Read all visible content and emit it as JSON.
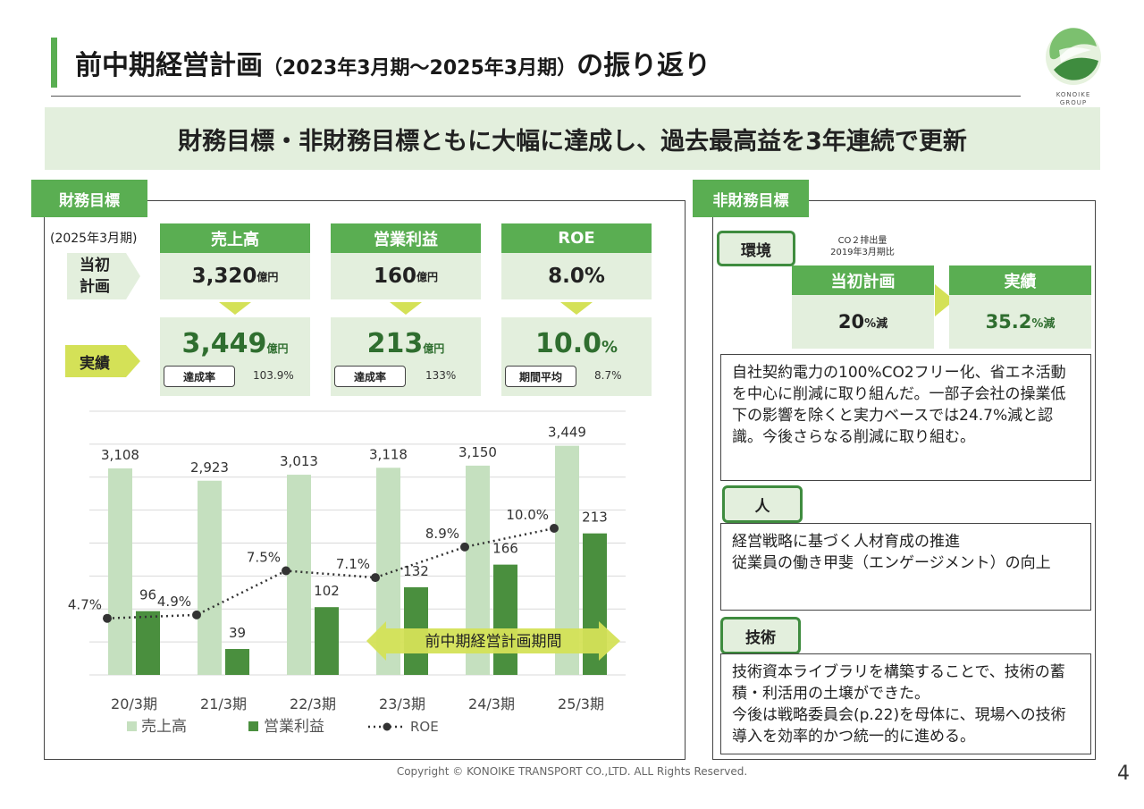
{
  "header": {
    "title_main": "前中期経営計画",
    "title_sub": "（2023年3月期～2025年3月期）",
    "title_end": "の振り返り",
    "logo_text_1": "KONOIKE",
    "logo_text_2": "GROUP"
  },
  "banner": "財務目標・非財務目標ともに大幅に達成し、過去最高益を3年連続で更新",
  "financial": {
    "tab": "財務目標",
    "period": "(2025年3月期)",
    "row_plan": "当初\n計画",
    "row_plan_1": "当初",
    "row_plan_2": "計画",
    "row_actual": "実績",
    "cols": [
      {
        "header": "売上高",
        "plan_value": "3,320",
        "plan_unit": "億円",
        "actual_value": "3,449",
        "actual_unit": "億円",
        "pill": "達成率",
        "pill_value": "103.9%"
      },
      {
        "header": "営業利益",
        "plan_value": "160",
        "plan_unit": "億円",
        "actual_value": "213",
        "actual_unit": "億円",
        "pill": "達成率",
        "pill_value": "133%"
      },
      {
        "header": "ROE",
        "plan_value": "8.0%",
        "plan_unit": "",
        "actual_value": "10.0",
        "actual_unit": "%",
        "pill": "期間平均",
        "pill_value": "8.7%"
      }
    ],
    "arrow_label": "前中期経営計画期間"
  },
  "chart_data": {
    "type": "bar",
    "categories": [
      "20/3期",
      "21/3期",
      "22/3期",
      "23/3期",
      "24/3期",
      "25/3期"
    ],
    "series": [
      {
        "name": "売上高",
        "type": "bar",
        "values": [
          3108,
          2923,
          3013,
          3118,
          3150,
          3449
        ],
        "labels": [
          "3,108",
          "2,923",
          "3,013",
          "3,118",
          "3,150",
          "3,449"
        ],
        "color": "#c5e0bf"
      },
      {
        "name": "営業利益",
        "type": "bar",
        "values": [
          96,
          39,
          102,
          132,
          166,
          213
        ],
        "labels": [
          "96",
          "39",
          "102",
          "132",
          "166",
          "213"
        ],
        "color": "#4a8f3e"
      },
      {
        "name": "ROE",
        "type": "line",
        "values": [
          4.7,
          4.9,
          7.5,
          7.1,
          8.9,
          10.0
        ],
        "labels": [
          "4.7%",
          "4.9%",
          "7.5%",
          "7.1%",
          "8.9%",
          "10.0%"
        ],
        "color": "#333333"
      }
    ],
    "legend_placement": "bottom",
    "grid": true
  },
  "nonfinancial": {
    "tab": "非財務目標",
    "env": {
      "label": "環境",
      "note_1": "CO２排出量",
      "note_2": "2019年3月期比",
      "plan_header": "当初計画",
      "plan_value": "20",
      "plan_unit": "%減",
      "actual_header": "実績",
      "actual_value": "35.2",
      "actual_unit": "%減",
      "text": "自社契約電力の100%CO2フリー化、省エネ活動を中心に削減に取り組んだ。一部子会社の操業低下の影響を除くと実力ベースでは24.7%減と認識。今後さらなる削減に取り組む。"
    },
    "people": {
      "label": "人",
      "text": "経営戦略に基づく人材育成の推進\n従業員の働き甲斐（エンゲージメント）の向上"
    },
    "tech": {
      "label": "技術",
      "text": "技術資本ライブラリを構築することで、技術の蓄積・利活用の土壌ができた。\n今後は戦略委員会(p.22)を母体に、現場への技術導入を効率的かつ統一的に進める。"
    }
  },
  "footer": {
    "copyright": "Copyright © KONOIKE TRANSPORT CO.,LTD.  ALL Rights Reserved.",
    "page": "4"
  },
  "colors": {
    "brand_green": "#5aae52",
    "light_green": "#e3efdd",
    "dark_green": "#3f8c3f",
    "accent_yellow": "#d4e157"
  }
}
